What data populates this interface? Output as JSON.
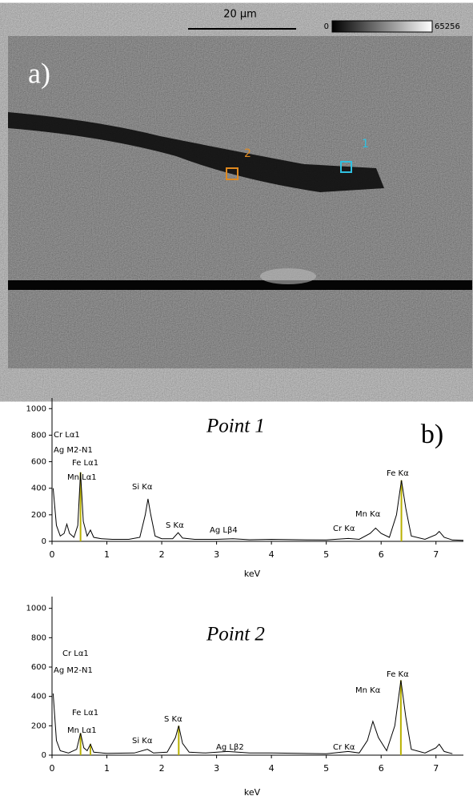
{
  "image": {
    "label": "a)",
    "scale_bar": "20 μm",
    "colorbar_ticks": [
      0,
      65256
    ],
    "points": [
      "1",
      "2"
    ]
  },
  "chart_data": [
    {
      "type": "line",
      "title": "Point 1",
      "panel_label": "b)",
      "x_label": "keV",
      "color": "#000000",
      "marker_color": "#b8b000",
      "x": [
        0.02,
        0.08,
        0.15,
        0.22,
        0.27,
        0.32,
        0.4,
        0.47,
        0.52,
        0.57,
        0.64,
        0.7,
        0.76,
        0.9,
        1.1,
        1.4,
        1.6,
        1.7,
        1.75,
        1.8,
        1.88,
        2.0,
        2.2,
        2.3,
        2.38,
        2.6,
        3.0,
        3.3,
        3.6,
        4.0,
        4.5,
        5.0,
        5.4,
        5.6,
        5.8,
        5.9,
        6.0,
        6.15,
        6.28,
        6.37,
        6.45,
        6.55,
        6.8,
        7.0,
        7.06,
        7.15,
        7.3,
        7.5
      ],
      "values": [
        400,
        120,
        40,
        60,
        130,
        60,
        30,
        120,
        520,
        150,
        40,
        85,
        30,
        20,
        15,
        15,
        30,
        200,
        320,
        200,
        40,
        20,
        20,
        65,
        25,
        15,
        15,
        20,
        12,
        15,
        12,
        10,
        22,
        15,
        60,
        100,
        60,
        30,
        200,
        460,
        250,
        40,
        15,
        50,
        75,
        30,
        10,
        8
      ],
      "markers": [
        0.52,
        6.37
      ],
      "annotations": [
        "Cr Lα1",
        "Ag M2-N1",
        "Fe Lα1",
        "Mn Lα1",
        "Si Kα",
        "S Kα",
        "Ag Lβ4",
        "Cr Kα",
        "Mn Kα",
        "Fe Kα"
      ],
      "xlim": [
        0,
        7.5
      ],
      "xticks": [
        0,
        1,
        2,
        3,
        4,
        5,
        6,
        7
      ],
      "ylim": [
        0,
        1080
      ],
      "yticks": [
        0,
        200,
        400,
        600,
        800,
        1000
      ]
    },
    {
      "type": "line",
      "title": "Point 2",
      "x_label": "keV",
      "color": "#000000",
      "marker_color": "#b8b000",
      "x": [
        0.02,
        0.08,
        0.15,
        0.3,
        0.45,
        0.52,
        0.58,
        0.64,
        0.7,
        0.76,
        1.0,
        1.5,
        1.74,
        1.85,
        2.1,
        2.25,
        2.31,
        2.38,
        2.5,
        2.8,
        3.2,
        3.6,
        4.0,
        4.5,
        5.0,
        5.4,
        5.6,
        5.75,
        5.85,
        5.95,
        6.1,
        6.25,
        6.36,
        6.45,
        6.55,
        6.8,
        7.0,
        7.06,
        7.15,
        7.3
      ],
      "values": [
        420,
        100,
        30,
        15,
        40,
        150,
        50,
        30,
        75,
        20,
        12,
        15,
        40,
        15,
        20,
        120,
        200,
        80,
        20,
        15,
        25,
        15,
        15,
        12,
        10,
        25,
        15,
        100,
        230,
        120,
        30,
        200,
        510,
        260,
        40,
        15,
        50,
        75,
        25,
        10
      ],
      "markers": [
        0.52,
        0.7,
        2.31,
        6.36
      ],
      "annotations": [
        "Cr Lα1",
        "Ag M2-N1",
        "Fe Lα1",
        "Mn Lα1",
        "Si Kα",
        "S Kα",
        "Ag Lβ2",
        "Cr Kα",
        "Mn Kα",
        "Fe Kα"
      ],
      "xlim": [
        0,
        7.5
      ],
      "xticks": [
        0,
        1,
        2,
        3,
        4,
        5,
        6,
        7
      ],
      "ylim": [
        0,
        1080
      ],
      "yticks": [
        0,
        200,
        400,
        600,
        800,
        1000
      ]
    }
  ]
}
